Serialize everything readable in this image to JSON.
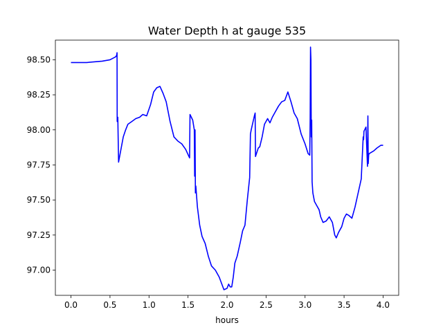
{
  "chart_data": {
    "type": "line",
    "title": "Water Depth h at gauge 535",
    "xlabel": "hours",
    "ylabel": "",
    "xlim": [
      -0.2,
      4.2
    ],
    "ylim": [
      96.82,
      98.64
    ],
    "xticks": [
      0.0,
      0.5,
      1.0,
      1.5,
      2.0,
      2.5,
      3.0,
      3.5,
      4.0
    ],
    "xtick_labels": [
      "0.0",
      "0.5",
      "1.0",
      "1.5",
      "2.0",
      "2.5",
      "3.0",
      "3.5",
      "4.0"
    ],
    "yticks": [
      97.0,
      97.25,
      97.5,
      97.75,
      98.0,
      98.25,
      98.5
    ],
    "ytick_labels": [
      "97.00",
      "97.25",
      "97.50",
      "97.75",
      "98.00",
      "98.25",
      "98.50"
    ],
    "grid": false,
    "series": [
      {
        "color": "#0000ff",
        "x": [
          0.0,
          0.2,
          0.4,
          0.5,
          0.57,
          0.585,
          0.59,
          0.592,
          0.6,
          0.61,
          0.64,
          0.67,
          0.7,
          0.73,
          0.78,
          0.83,
          0.88,
          0.92,
          0.97,
          1.02,
          1.06,
          1.1,
          1.14,
          1.18,
          1.22,
          1.27,
          1.32,
          1.37,
          1.42,
          1.47,
          1.52,
          1.525,
          1.56,
          1.58,
          1.585,
          1.59,
          1.595,
          1.6,
          1.62,
          1.65,
          1.68,
          1.72,
          1.76,
          1.8,
          1.85,
          1.9,
          1.96,
          2.0,
          2.02,
          2.04,
          2.06,
          2.08,
          2.1,
          2.13,
          2.17,
          2.2,
          2.23,
          2.26,
          2.29,
          2.3,
          2.31,
          2.35,
          2.36,
          2.365,
          2.4,
          2.42,
          2.45,
          2.48,
          2.52,
          2.55,
          2.58,
          2.62,
          2.66,
          2.7,
          2.74,
          2.78,
          2.82,
          2.86,
          2.9,
          2.95,
          3.0,
          3.04,
          3.06,
          3.065,
          3.07,
          3.075,
          3.08,
          3.085,
          3.09,
          3.1,
          3.12,
          3.15,
          3.18,
          3.2,
          3.23,
          3.27,
          3.31,
          3.35,
          3.38,
          3.4,
          3.43,
          3.47,
          3.5,
          3.53,
          3.56,
          3.6,
          3.64,
          3.68,
          3.72,
          3.745,
          3.75,
          3.755,
          3.78,
          3.8,
          3.805,
          3.81,
          3.815,
          3.82,
          3.85,
          3.88,
          3.92,
          3.97,
          4.0
        ],
        "y": [
          98.48,
          98.48,
          98.49,
          98.5,
          98.52,
          98.53,
          98.55,
          98.06,
          98.09,
          97.77,
          97.86,
          97.95,
          98.0,
          98.04,
          98.06,
          98.08,
          98.09,
          98.11,
          98.1,
          98.18,
          98.27,
          98.3,
          98.31,
          98.26,
          98.2,
          98.06,
          97.95,
          97.92,
          97.9,
          97.86,
          97.8,
          98.11,
          98.07,
          98.0,
          97.67,
          98.0,
          97.55,
          97.6,
          97.45,
          97.32,
          97.24,
          97.19,
          97.1,
          97.03,
          97.0,
          96.95,
          96.86,
          96.87,
          96.9,
          96.88,
          96.88,
          96.95,
          97.05,
          97.1,
          97.2,
          97.28,
          97.32,
          97.5,
          97.66,
          97.97,
          98.0,
          98.1,
          98.12,
          97.81,
          97.87,
          97.88,
          97.95,
          98.04,
          98.08,
          98.05,
          98.09,
          98.13,
          98.17,
          98.2,
          98.21,
          98.27,
          98.2,
          98.12,
          98.08,
          97.97,
          97.9,
          97.83,
          97.82,
          98.08,
          98.59,
          98.5,
          97.95,
          98.07,
          97.63,
          97.55,
          97.49,
          97.46,
          97.43,
          97.38,
          97.34,
          97.35,
          97.38,
          97.34,
          97.25,
          97.23,
          97.27,
          97.31,
          97.37,
          97.4,
          97.39,
          97.37,
          97.45,
          97.55,
          97.65,
          97.95,
          97.93,
          97.99,
          98.02,
          97.74,
          98.1,
          97.76,
          97.82,
          97.83,
          97.84,
          97.85,
          97.87,
          97.89,
          97.89
        ]
      }
    ]
  }
}
